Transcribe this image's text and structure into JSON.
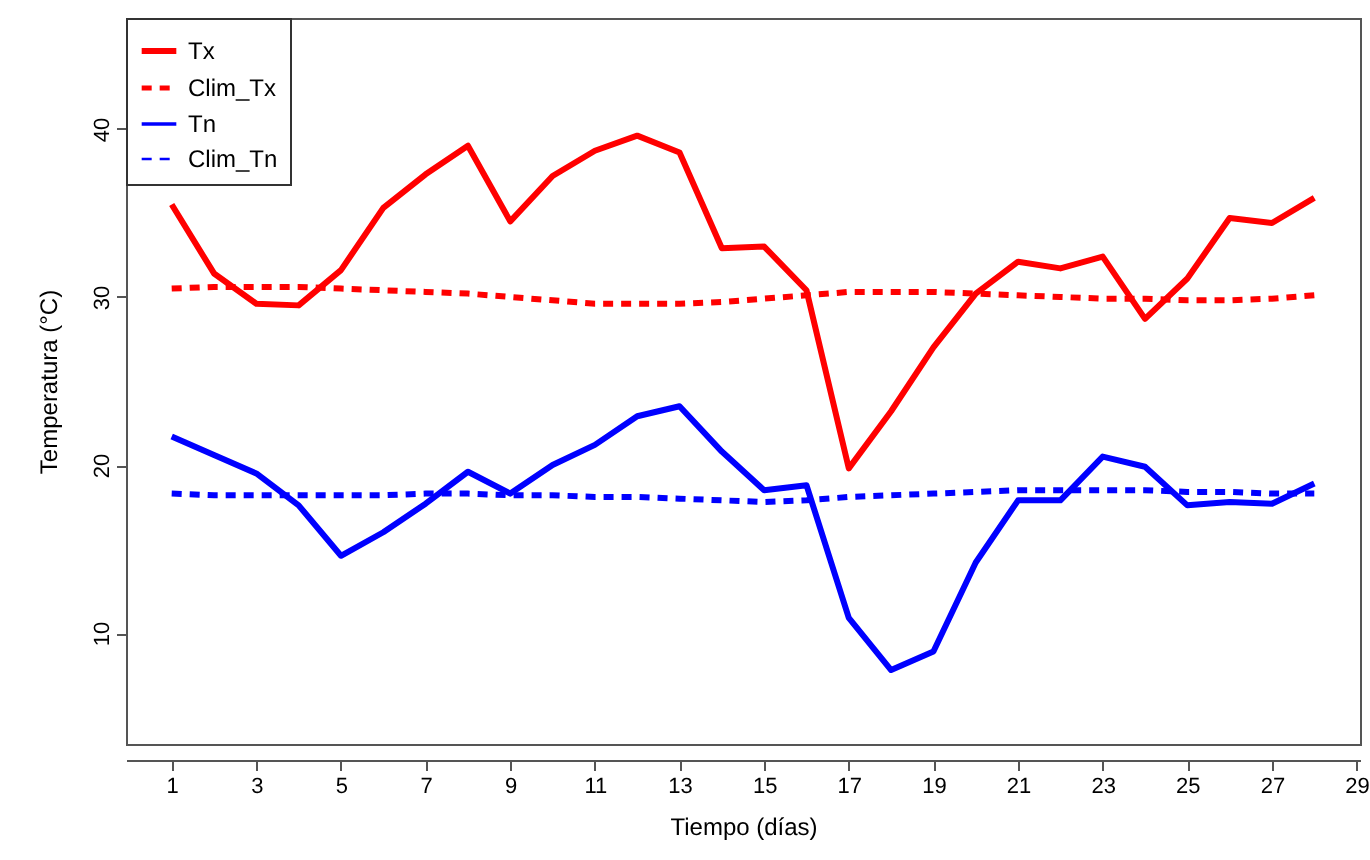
{
  "chart_data": {
    "type": "line",
    "xlabel": "Tiempo (días)",
    "ylabel": "Temperatura (°C)",
    "x": [
      1,
      2,
      3,
      4,
      5,
      6,
      7,
      8,
      9,
      10,
      11,
      12,
      13,
      14,
      15,
      16,
      17,
      18,
      19,
      20,
      21,
      22,
      23,
      24,
      25,
      26,
      27,
      28
    ],
    "xlim": [
      -0.08,
      29.08
    ],
    "xticks": [
      1,
      3,
      5,
      7,
      9,
      11,
      13,
      15,
      17,
      19,
      21,
      23,
      25,
      27,
      29
    ],
    "ylim": [
      3.4,
      46.6
    ],
    "yticks": [
      10,
      20,
      30,
      40
    ],
    "grid": false,
    "legend": "top left",
    "series": [
      {
        "name": "Tx",
        "color": "#ff0000",
        "line_style": "solid",
        "values": [
          35.5,
          31.4,
          29.6,
          29.5,
          31.6,
          35.3,
          37.3,
          39.0,
          34.5,
          37.2,
          38.7,
          39.6,
          38.6,
          32.9,
          33.0,
          30.4,
          19.8,
          23.2,
          27.0,
          30.2,
          32.1,
          31.7,
          32.4,
          28.7,
          31.1,
          34.7,
          34.4,
          35.9
        ]
      },
      {
        "name": "Clim_Tx",
        "color": "#ff0000",
        "line_style": "dashed",
        "values": [
          30.5,
          30.6,
          30.6,
          30.6,
          30.5,
          30.4,
          30.3,
          30.2,
          30.0,
          29.8,
          29.6,
          29.6,
          29.6,
          29.7,
          29.9,
          30.1,
          30.3,
          30.3,
          30.3,
          30.2,
          30.1,
          30.0,
          29.9,
          29.9,
          29.8,
          29.8,
          29.9,
          30.1
        ]
      },
      {
        "name": "Tn",
        "color": "#0000ff",
        "line_style": "solid",
        "values": [
          21.7,
          20.6,
          19.5,
          17.6,
          14.6,
          16.0,
          17.7,
          19.6,
          18.3,
          20.0,
          21.2,
          22.9,
          23.5,
          20.8,
          18.5,
          18.8,
          10.9,
          7.8,
          8.9,
          14.2,
          17.9,
          17.9,
          20.5,
          19.9,
          17.6,
          17.8,
          17.7,
          18.9
        ]
      },
      {
        "name": "Clim_Tn",
        "color": "#0000ff",
        "line_style": "dashed",
        "values": [
          18.3,
          18.2,
          18.2,
          18.2,
          18.2,
          18.2,
          18.3,
          18.3,
          18.2,
          18.2,
          18.1,
          18.1,
          18.0,
          17.9,
          17.8,
          17.9,
          18.1,
          18.2,
          18.3,
          18.4,
          18.5,
          18.5,
          18.5,
          18.5,
          18.4,
          18.4,
          18.3,
          18.3
        ]
      }
    ]
  }
}
